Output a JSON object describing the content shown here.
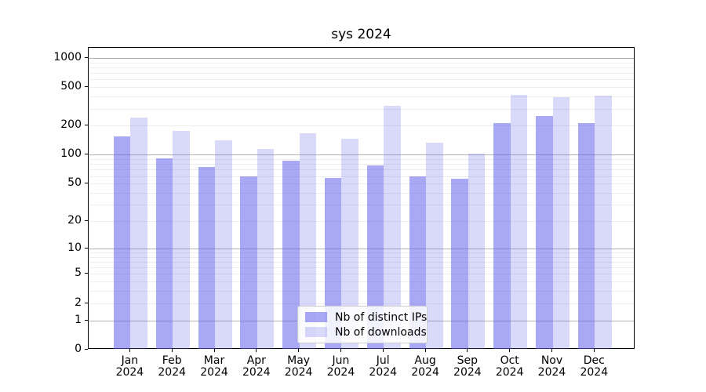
{
  "chart_data": {
    "type": "bar",
    "title": "sys 2024",
    "categories": [
      "Jan",
      "Feb",
      "Mar",
      "Apr",
      "May",
      "Jun",
      "Jul",
      "Aug",
      "Sep",
      "Oct",
      "Nov",
      "Dec"
    ],
    "category_year": "2024",
    "series": [
      {
        "name": "Nb of distinct IPs",
        "color": "rgba(90,90,235,0.53)",
        "values": [
          155,
          92,
          75,
          59,
          87,
          57,
          77,
          60,
          56,
          213,
          252,
          213
        ]
      },
      {
        "name": "Nb of downloads",
        "color": "rgba(90,90,235,0.23)",
        "values": [
          243,
          176,
          142,
          116,
          167,
          146,
          322,
          133,
          102,
          418,
          393,
          410
        ]
      }
    ],
    "xlabel": "",
    "ylabel": "",
    "y_scale": "log1p",
    "y_ticks": [
      0,
      1,
      2,
      5,
      10,
      20,
      50,
      100,
      200,
      500,
      1000
    ],
    "major_gridlines": [
      1,
      10,
      100,
      1000
    ],
    "ylim": [
      0,
      1270
    ],
    "grid": true,
    "legend_position": "lower center"
  },
  "colors": {
    "background": "#ffffff",
    "spine": "#000000",
    "major_grid": "#b3b3b3",
    "minor_grid": "#ededed",
    "text": "#000000"
  }
}
